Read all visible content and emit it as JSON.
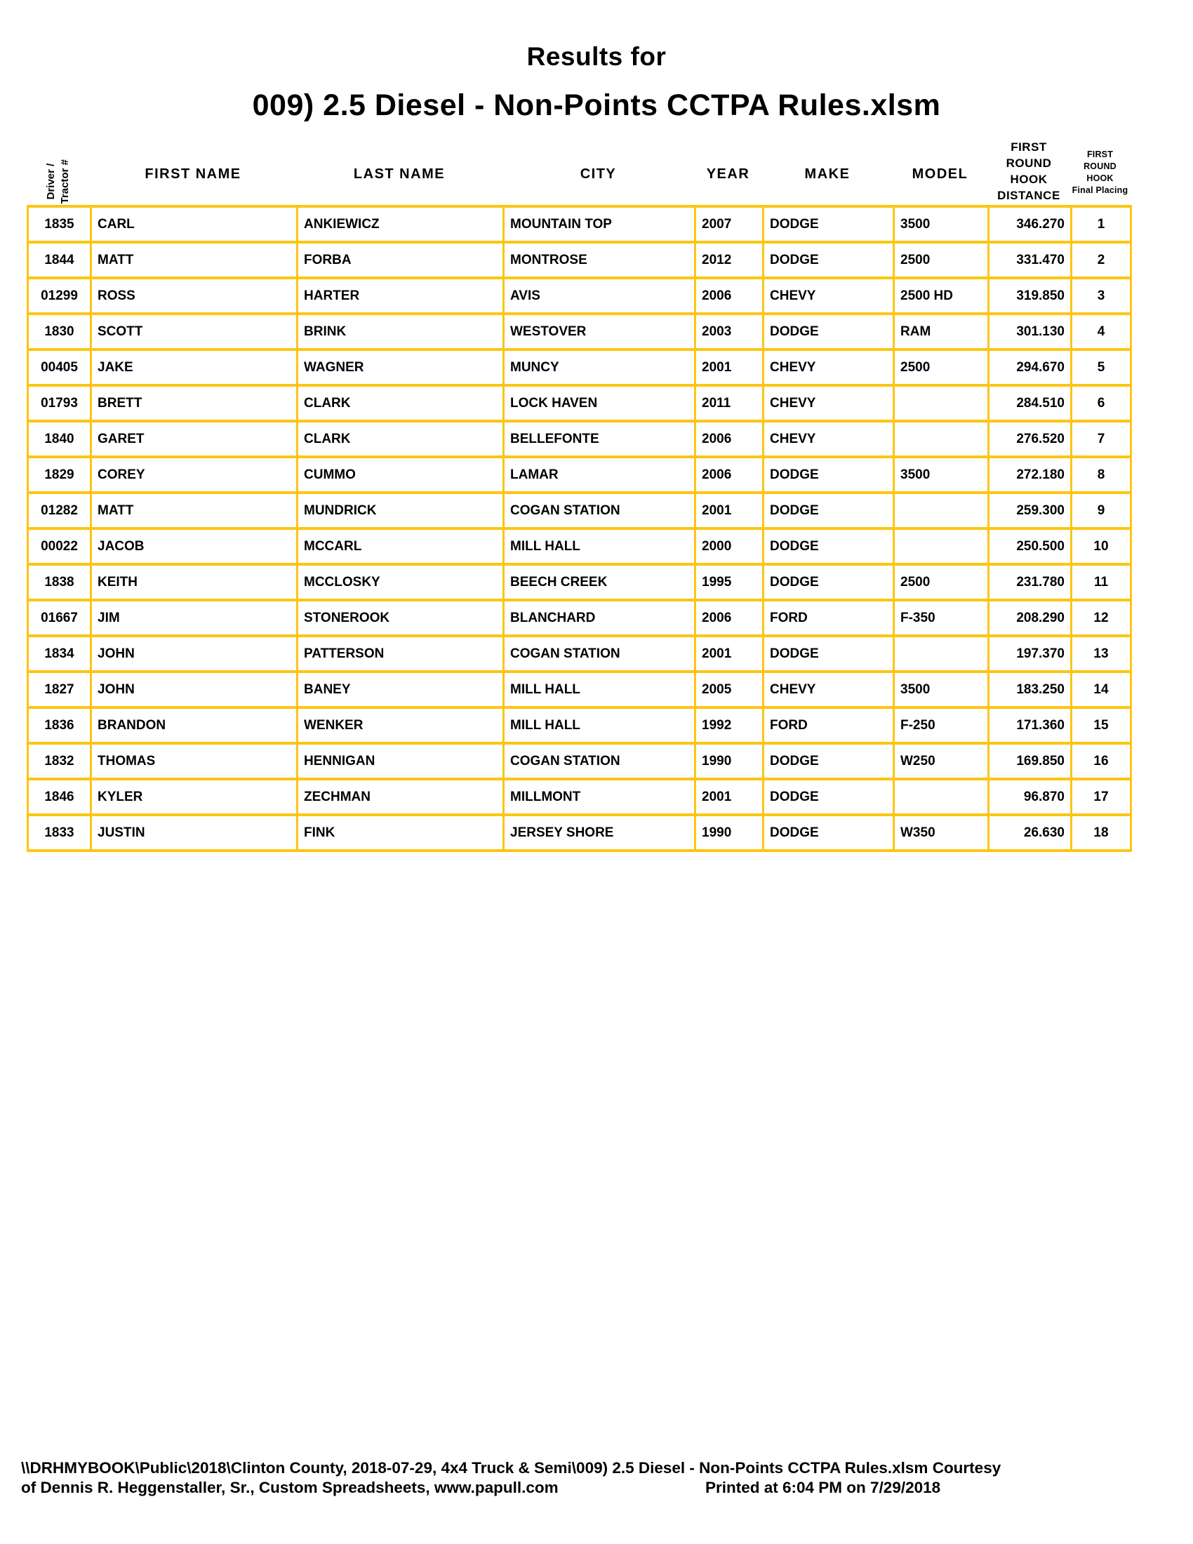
{
  "title": {
    "line1": "Results for",
    "line2": "009) 2.5 Diesel - Non-Points CCTPA Rules.xlsm"
  },
  "colors": {
    "table_border": "#FCC511",
    "page_background": "#FFFFFF",
    "text": "#000000"
  },
  "table": {
    "headers": {
      "driver": "Driver /\nTractor #",
      "first_name": "FIRST NAME",
      "last_name": "LAST NAME",
      "city": "CITY",
      "year": "YEAR",
      "make": "MAKE",
      "model": "MODEL",
      "distance": "FIRST\nROUND\nHOOK\nDISTANCE",
      "placing": "FIRST ROUND\nHOOK\nFinal Placing"
    },
    "rows": [
      [
        "1835",
        "CARL",
        "ANKIEWICZ",
        "MOUNTAIN TOP",
        "2007",
        "DODGE",
        "3500",
        "346.270",
        "1"
      ],
      [
        "1844",
        "MATT",
        "FORBA",
        "MONTROSE",
        "2012",
        "DODGE",
        "2500",
        "331.470",
        "2"
      ],
      [
        "01299",
        "ROSS",
        "HARTER",
        "AVIS",
        "2006",
        "CHEVY",
        "2500 HD",
        "319.850",
        "3"
      ],
      [
        "1830",
        "SCOTT",
        "BRINK",
        "WESTOVER",
        "2003",
        "DODGE",
        "RAM",
        "301.130",
        "4"
      ],
      [
        "00405",
        "JAKE",
        "WAGNER",
        "MUNCY",
        "2001",
        "CHEVY",
        "2500",
        "294.670",
        "5"
      ],
      [
        "01793",
        "BRETT",
        "CLARK",
        "LOCK HAVEN",
        "2011",
        "CHEVY",
        "",
        "284.510",
        "6"
      ],
      [
        "1840",
        "GARET",
        "CLARK",
        "BELLEFONTE",
        "2006",
        "CHEVY",
        "",
        "276.520",
        "7"
      ],
      [
        "1829",
        "COREY",
        "CUMMO",
        "LAMAR",
        "2006",
        "DODGE",
        "3500",
        "272.180",
        "8"
      ],
      [
        "01282",
        "MATT",
        "MUNDRICK",
        "COGAN STATION",
        "2001",
        "DODGE",
        "",
        "259.300",
        "9"
      ],
      [
        "00022",
        "JACOB",
        "MCCARL",
        "MILL HALL",
        "2000",
        "DODGE",
        "",
        "250.500",
        "10"
      ],
      [
        "1838",
        "KEITH",
        "MCCLOSKY",
        "BEECH CREEK",
        "1995",
        "DODGE",
        "2500",
        "231.780",
        "11"
      ],
      [
        "01667",
        "JIM",
        "STONEROOK",
        "BLANCHARD",
        "2006",
        "FORD",
        "F-350",
        "208.290",
        "12"
      ],
      [
        "1834",
        "JOHN",
        "PATTERSON",
        "COGAN STATION",
        "2001",
        "DODGE",
        "",
        "197.370",
        "13"
      ],
      [
        "1827",
        "JOHN",
        "BANEY",
        "MILL HALL",
        "2005",
        "CHEVY",
        "3500",
        "183.250",
        "14"
      ],
      [
        "1836",
        "BRANDON",
        "WENKER",
        "MILL HALL",
        "1992",
        "FORD",
        "F-250",
        "171.360",
        "15"
      ],
      [
        "1832",
        "THOMAS",
        "HENNIGAN",
        "COGAN STATION",
        "1990",
        "DODGE",
        "W250",
        "169.850",
        "16"
      ],
      [
        "1846",
        "KYLER",
        "ZECHMAN",
        "MILLMONT",
        "2001",
        "DODGE",
        "",
        "96.870",
        "17"
      ],
      [
        "1833",
        "JUSTIN",
        "FINK",
        "JERSEY SHORE",
        "1990",
        "DODGE",
        "W350",
        "26.630",
        "18"
      ]
    ]
  },
  "footer": {
    "line1": "\\\\DRHMYBOOK\\Public\\2018\\Clinton County, 2018-07-29, 4x4 Truck & Semi\\009) 2.5 Diesel - Non-Points CCTPA Rules.xlsm  Courtesy",
    "line2_left": "of Dennis R. Heggenstaller, Sr., Custom Spreadsheets, www.papull.com",
    "printed": "Printed at 6:04 PM on 7/29/2018"
  }
}
